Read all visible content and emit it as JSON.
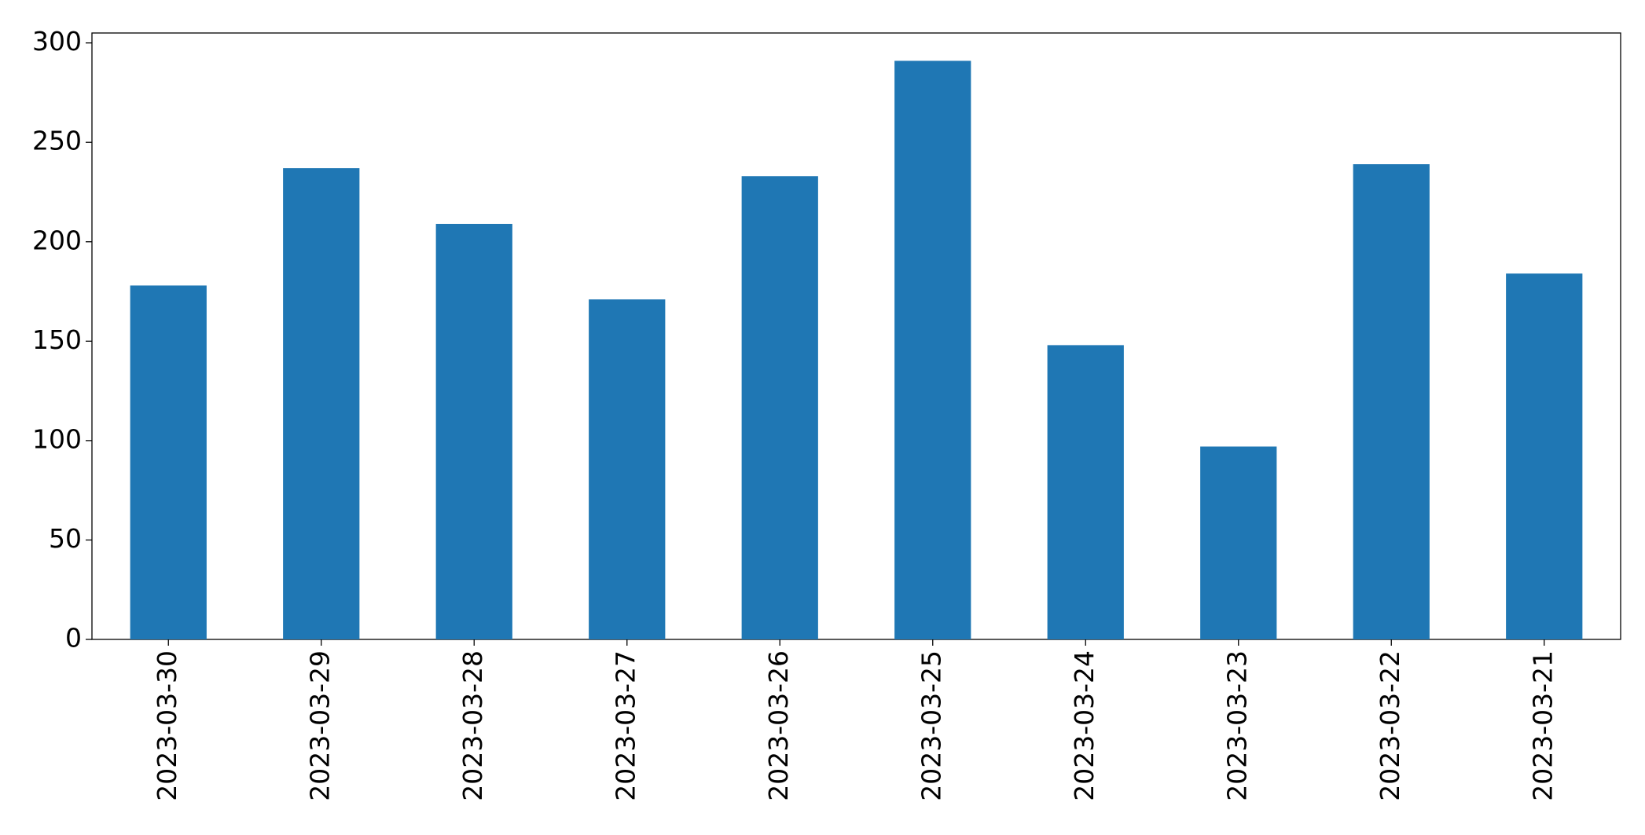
{
  "chart_data": {
    "type": "bar",
    "categories": [
      "2023-03-30",
      "2023-03-29",
      "2023-03-28",
      "2023-03-27",
      "2023-03-26",
      "2023-03-25",
      "2023-03-24",
      "2023-03-23",
      "2023-03-22",
      "2023-03-21"
    ],
    "values": [
      178,
      237,
      209,
      171,
      233,
      291,
      148,
      97,
      239,
      184
    ],
    "color": "#1f77b4",
    "ylim": [
      0,
      305
    ],
    "yticks": [
      0,
      50,
      100,
      150,
      200,
      250,
      300
    ],
    "grid": false
  }
}
